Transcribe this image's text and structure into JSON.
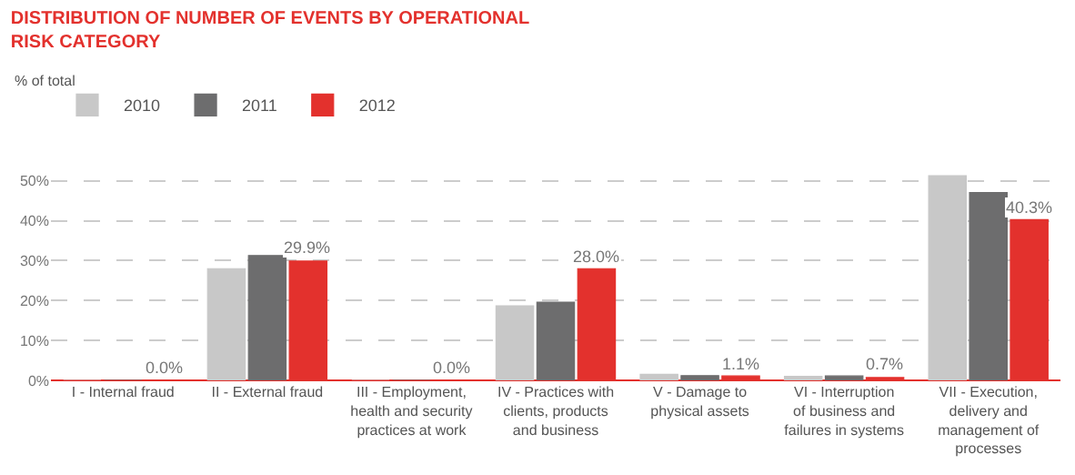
{
  "chart_data": {
    "type": "bar",
    "title": "DISTRIBUTION OF NUMBER OF EVENTS BY OPERATIONAL\nRISK CATEGORY",
    "subtitle": "% of total",
    "categories": [
      "I - Internal fraud",
      "II - External fraud",
      "III - Employment,\nhealth and security\npractices at work",
      "IV - Practices with\nclients, products\nand business",
      "V - Damage to\nphysical assets",
      "VI - Interruption\nof business and\nfailures in systems",
      "VII - Execution,\ndelivery and\nmanagement of\nprocesses"
    ],
    "series": [
      {
        "name": "2010",
        "color": "#c8c8c8",
        "values": [
          0,
          28.0,
          0,
          18.7,
          1.5,
          1.0,
          51.3
        ]
      },
      {
        "name": "2011",
        "color": "#6d6d6e",
        "values": [
          0,
          31.3,
          0,
          19.6,
          1.2,
          1.1,
          47.1
        ]
      },
      {
        "name": "2012",
        "color": "#e3312d",
        "values": [
          0.0,
          29.9,
          0.0,
          28.0,
          1.1,
          0.7,
          40.3
        ],
        "value_labels": [
          "0.0%",
          "29.9%",
          "0.0%",
          "28.0%",
          "1.1%",
          "0.7%",
          "40.3%"
        ]
      }
    ],
    "ylim": [
      0,
      52
    ],
    "yticks": [
      {
        "value": 0,
        "label": "0%"
      },
      {
        "value": 10,
        "label": "10%"
      },
      {
        "value": 20,
        "label": "20%"
      },
      {
        "value": 30,
        "label": "30%"
      },
      {
        "value": 40,
        "label": "40%"
      },
      {
        "value": 50,
        "label": "50%"
      }
    ],
    "grid": "y",
    "line_style": "dashed",
    "legend": "top left"
  }
}
